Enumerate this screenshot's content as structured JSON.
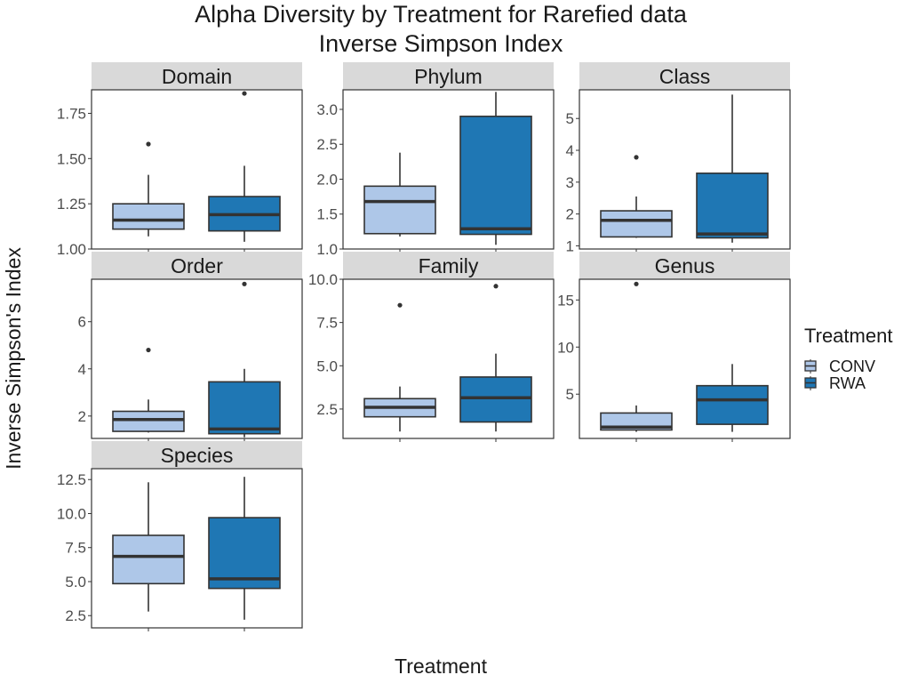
{
  "title_line1": "Alpha Diversity by Treatment for Rarefied data",
  "title_line2": "Inverse Simpson Index",
  "xlabel": "Treatment",
  "ylabel": "Inverse Simpson's Index",
  "legend": {
    "title": "Treatment",
    "items": [
      {
        "label": "CONV",
        "color": "#aec7e8"
      },
      {
        "label": "RWA",
        "color": "#1f77b4"
      }
    ]
  },
  "chart_data": {
    "type": "boxplot",
    "categories": [
      "CONV",
      "RWA"
    ],
    "legend_position": "right",
    "grid": false,
    "panels": [
      {
        "name": "Domain",
        "ylim": [
          1.0,
          1.88
        ],
        "ticks": [
          1.0,
          1.25,
          1.5,
          1.75
        ],
        "tick_labels": [
          "1.00",
          "1.25",
          "1.50",
          "1.75"
        ],
        "boxes": [
          {
            "group": "CONV",
            "whisker_low": 1.07,
            "q1": 1.11,
            "median": 1.16,
            "q3": 1.25,
            "whisker_high": 1.41,
            "outliers": [
              1.58
            ]
          },
          {
            "group": "RWA",
            "whisker_low": 1.04,
            "q1": 1.1,
            "median": 1.19,
            "q3": 1.29,
            "whisker_high": 1.46,
            "outliers": [
              1.86
            ]
          }
        ]
      },
      {
        "name": "Phylum",
        "ylim": [
          1.0,
          3.28
        ],
        "ticks": [
          1.0,
          1.5,
          2.0,
          2.5,
          3.0
        ],
        "tick_labels": [
          "1.0",
          "1.5",
          "2.0",
          "2.5",
          "3.0"
        ],
        "boxes": [
          {
            "group": "CONV",
            "whisker_low": 1.18,
            "q1": 1.22,
            "median": 1.68,
            "q3": 1.9,
            "whisker_high": 2.38,
            "outliers": []
          },
          {
            "group": "RWA",
            "whisker_low": 1.06,
            "q1": 1.21,
            "median": 1.29,
            "q3": 2.9,
            "whisker_high": 3.25,
            "outliers": []
          }
        ]
      },
      {
        "name": "Class",
        "ylim": [
          0.9,
          5.9
        ],
        "ticks": [
          1,
          2,
          3,
          4,
          5
        ],
        "tick_labels": [
          "1",
          "2",
          "3",
          "4",
          "5"
        ],
        "boxes": [
          {
            "group": "CONV",
            "whisker_low": 1.25,
            "q1": 1.28,
            "median": 1.8,
            "q3": 2.1,
            "whisker_high": 2.55,
            "outliers": [
              3.78
            ]
          },
          {
            "group": "RWA",
            "whisker_low": 1.1,
            "q1": 1.25,
            "median": 1.37,
            "q3": 3.28,
            "whisker_high": 5.75,
            "outliers": []
          }
        ]
      },
      {
        "name": "Order",
        "ylim": [
          1.05,
          7.8
        ],
        "ticks": [
          2,
          4,
          6
        ],
        "tick_labels": [
          "2",
          "4",
          "6"
        ],
        "boxes": [
          {
            "group": "CONV",
            "whisker_low": 1.3,
            "q1": 1.35,
            "median": 1.85,
            "q3": 2.2,
            "whisker_high": 2.7,
            "outliers": [
              4.8
            ]
          },
          {
            "group": "RWA",
            "whisker_low": 1.1,
            "q1": 1.25,
            "median": 1.45,
            "q3": 3.45,
            "whisker_high": 4.0,
            "outliers": [
              7.6
            ]
          }
        ]
      },
      {
        "name": "Family",
        "ylim": [
          0.8,
          10.0
        ],
        "ticks": [
          2.5,
          5.0,
          7.5,
          10.0
        ],
        "tick_labels": [
          "2.5",
          "5.0",
          "7.5",
          "10.0"
        ],
        "boxes": [
          {
            "group": "CONV",
            "whisker_low": 1.2,
            "q1": 2.05,
            "median": 2.6,
            "q3": 3.1,
            "whisker_high": 3.8,
            "outliers": [
              8.5
            ]
          },
          {
            "group": "RWA",
            "whisker_low": 1.2,
            "q1": 1.75,
            "median": 3.15,
            "q3": 4.35,
            "whisker_high": 5.7,
            "outliers": [
              9.6
            ]
          }
        ]
      },
      {
        "name": "Genus",
        "ylim": [
          0.3,
          17.2
        ],
        "ticks": [
          5,
          10,
          15
        ],
        "tick_labels": [
          "5",
          "10",
          "15"
        ],
        "boxes": [
          {
            "group": "CONV",
            "whisker_low": 1.0,
            "q1": 1.2,
            "median": 1.5,
            "q3": 3.0,
            "whisker_high": 3.8,
            "outliers": [
              16.7
            ]
          },
          {
            "group": "RWA",
            "whisker_low": 1.0,
            "q1": 1.8,
            "median": 4.4,
            "q3": 5.9,
            "whisker_high": 8.2,
            "outliers": []
          }
        ]
      },
      {
        "name": "Species",
        "ylim": [
          1.6,
          13.3
        ],
        "ticks": [
          2.5,
          5.0,
          7.5,
          10.0,
          12.5
        ],
        "tick_labels": [
          "2.5",
          "5.0",
          "7.5",
          "10.0",
          "12.5"
        ],
        "boxes": [
          {
            "group": "CONV",
            "whisker_low": 2.8,
            "q1": 4.85,
            "median": 6.85,
            "q3": 8.4,
            "whisker_high": 12.3,
            "outliers": []
          },
          {
            "group": "RWA",
            "whisker_low": 2.2,
            "q1": 4.5,
            "median": 5.2,
            "q3": 9.7,
            "whisker_high": 12.7,
            "outliers": []
          }
        ]
      }
    ]
  }
}
